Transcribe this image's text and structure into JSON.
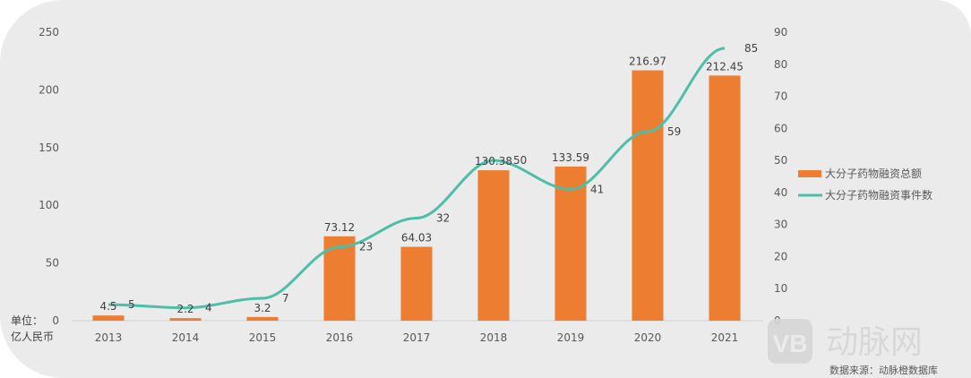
{
  "chart_data": {
    "type": "bar+line",
    "categories": [
      "2013",
      "2014",
      "2015",
      "2016",
      "2017",
      "2018",
      "2019",
      "2020",
      "2021"
    ],
    "series": [
      {
        "name": "大分子药物融资总额",
        "type": "bar",
        "axis": "left",
        "color": "#ed7d31",
        "values": [
          4.5,
          2.2,
          3.2,
          73.12,
          64.03,
          130.38,
          133.59,
          216.97,
          212.45
        ],
        "labels": [
          "4.5",
          "2.2",
          "3.2",
          "73.12",
          "64.03",
          "130.38",
          "133.59",
          "216.97",
          "212.45"
        ]
      },
      {
        "name": "大分子药物融资事件数",
        "type": "line",
        "axis": "right",
        "color": "#4dbfa8",
        "values": [
          5,
          4,
          7,
          23,
          32,
          50,
          41,
          59,
          85
        ],
        "labels": [
          "5",
          "4",
          "7",
          "23",
          "32",
          "50",
          "41",
          "59",
          "85"
        ]
      }
    ],
    "y_left": {
      "ylim": [
        0,
        250
      ],
      "ticks": [
        "0",
        "50",
        "100",
        "150",
        "200",
        "250"
      ],
      "unit_line1": "单位：",
      "unit_line2": "亿人民币"
    },
    "y_right": {
      "ylim": [
        0,
        90
      ],
      "ticks": [
        "0",
        "10",
        "20",
        "30",
        "40",
        "50",
        "60",
        "70",
        "80",
        "90"
      ]
    },
    "legend": "right",
    "grid": false
  },
  "source": "数据来源：动脉橙数据库",
  "watermark": "动脉网"
}
